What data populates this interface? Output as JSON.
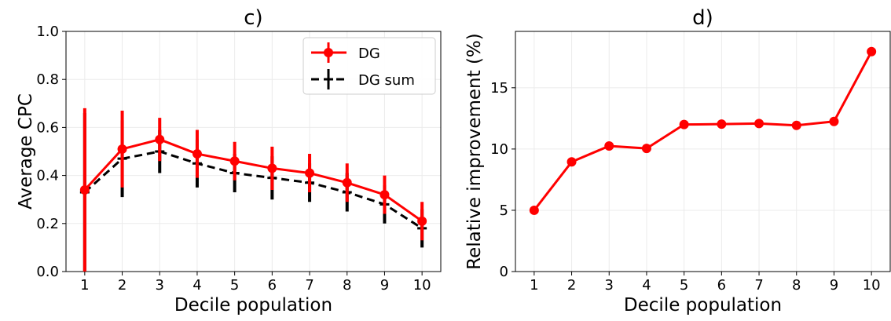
{
  "chart_data": [
    {
      "type": "line",
      "title": "c)",
      "xlabel": "Decile population",
      "ylabel": "Average CPC",
      "x": [
        1,
        2,
        3,
        4,
        5,
        6,
        7,
        8,
        9,
        10
      ],
      "xlim": [
        0.5,
        10.5
      ],
      "ylim": [
        0.0,
        1.0
      ],
      "yticks": [
        "0.0",
        "0.2",
        "0.4",
        "0.6",
        "0.8",
        "1.0"
      ],
      "xticks": [
        "1",
        "2",
        "3",
        "4",
        "5",
        "6",
        "7",
        "8",
        "9",
        "10"
      ],
      "grid": true,
      "legend_position": "top-right",
      "series": [
        {
          "name": "DG",
          "color": "#ff0000",
          "style": "solid",
          "marker": "circle",
          "values": [
            0.34,
            0.51,
            0.55,
            0.49,
            0.46,
            0.43,
            0.41,
            0.37,
            0.32,
            0.21
          ],
          "error": [
            0.34,
            0.16,
            0.09,
            0.1,
            0.08,
            0.09,
            0.08,
            0.08,
            0.08,
            0.08
          ]
        },
        {
          "name": "DG sum",
          "color": "#000000",
          "style": "dashed",
          "marker": "plus",
          "values": [
            0.33,
            0.47,
            0.5,
            0.45,
            0.41,
            0.39,
            0.37,
            0.33,
            0.28,
            0.18
          ],
          "error": [
            0.33,
            0.16,
            0.09,
            0.1,
            0.08,
            0.09,
            0.08,
            0.08,
            0.08,
            0.08
          ]
        }
      ]
    },
    {
      "type": "line",
      "title": "d)",
      "xlabel": "Decile population",
      "ylabel": "Relative improvement (%)",
      "x": [
        1,
        2,
        3,
        4,
        5,
        6,
        7,
        8,
        9,
        10
      ],
      "xlim": [
        0.5,
        10.5
      ],
      "ylim": [
        0,
        19.6
      ],
      "yticks": [
        "0",
        "5",
        "10",
        "15"
      ],
      "xticks": [
        "1",
        "2",
        "3",
        "4",
        "5",
        "6",
        "7",
        "8",
        "9",
        "10"
      ],
      "grid": true,
      "series": [
        {
          "color": "#ff0000",
          "style": "solid",
          "marker": "circle",
          "values": [
            5.0,
            8.95,
            10.25,
            10.05,
            12.0,
            12.03,
            12.08,
            11.93,
            12.25,
            17.95
          ]
        }
      ]
    }
  ]
}
